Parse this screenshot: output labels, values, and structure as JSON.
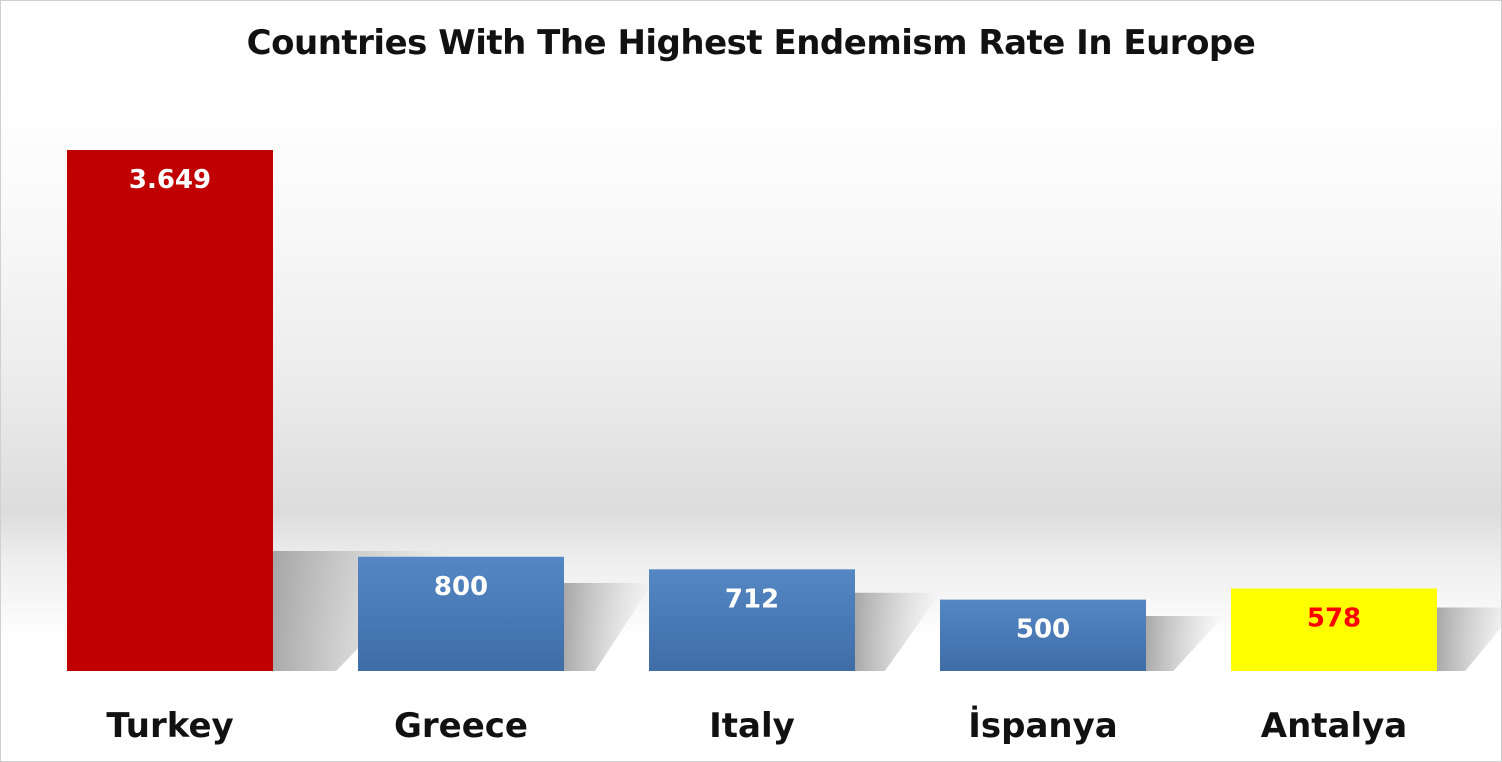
{
  "chart_data": {
    "type": "bar",
    "title": "Countries With The Highest Endemism Rate In Europe",
    "categories": [
      "Turkey",
      "Greece",
      "Italy",
      "İspanya",
      "Antalya"
    ],
    "values": [
      3649,
      800,
      712,
      500,
      578
    ],
    "data_labels": [
      "3.649",
      "800",
      "712",
      "500",
      "578"
    ],
    "bar_colors": [
      "#c00000",
      "#4f81bd",
      "#4f81bd",
      "#4f81bd",
      "#ffff00"
    ],
    "label_colors": [
      "#ffffff",
      "#ffffff",
      "#ffffff",
      "#ffffff",
      "#ff0000"
    ],
    "ylim": [
      0,
      3649
    ],
    "grid": false,
    "legend": "none"
  }
}
